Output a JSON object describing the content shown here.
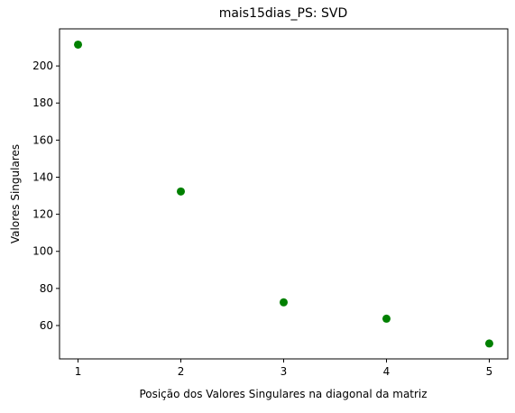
{
  "chart_data": {
    "type": "scatter",
    "title": "mais15dias_PS: SVD",
    "xlabel": "Posição dos Valores Singulares na diagonal da matriz",
    "ylabel": "Valores Singulares",
    "x": [
      1,
      2,
      3,
      4,
      5
    ],
    "y": [
      211.5,
      132.3,
      72.5,
      63.7,
      50.3
    ],
    "xlim": [
      0.82,
      5.18
    ],
    "ylim": [
      42,
      220
    ],
    "xticks": [
      1,
      2,
      3,
      4,
      5
    ],
    "yticks": [
      60,
      80,
      100,
      120,
      140,
      160,
      180,
      200
    ],
    "xtick_labels": [
      "1",
      "2",
      "3",
      "4",
      "5"
    ],
    "ytick_labels": [
      "60",
      "80",
      "100",
      "120",
      "140",
      "160",
      "180",
      "200"
    ],
    "marker_color": "#008000",
    "grid": false,
    "legend": "none"
  }
}
